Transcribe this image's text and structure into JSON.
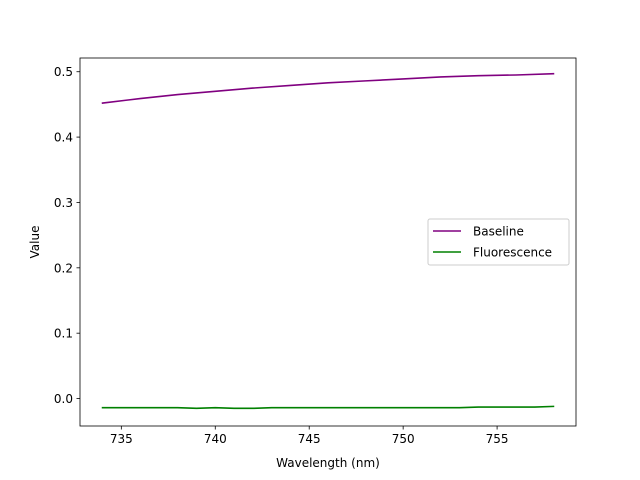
{
  "chart_data": {
    "type": "line",
    "title": "",
    "xlabel": "Wavelength (nm)",
    "ylabel": "Value",
    "xlim": [
      732.8,
      759.2
    ],
    "ylim": [
      -0.042,
      0.521
    ],
    "xticks": [
      735,
      740,
      745,
      750,
      755
    ],
    "yticks": [
      0.0,
      0.1,
      0.2,
      0.3,
      0.4,
      0.5
    ],
    "xtick_labels": [
      "735",
      "740",
      "745",
      "750",
      "755"
    ],
    "ytick_labels": [
      "0.0",
      "0.1",
      "0.2",
      "0.3",
      "0.4",
      "0.5"
    ],
    "grid": false,
    "legend": "center-right",
    "series": [
      {
        "name": "Baseline",
        "color": "#800080",
        "x": [
          734,
          736,
          738,
          740,
          742,
          744,
          746,
          748,
          750,
          752,
          754,
          756,
          758
        ],
        "y": [
          0.452,
          0.459,
          0.465,
          0.47,
          0.475,
          0.479,
          0.483,
          0.486,
          0.489,
          0.492,
          0.494,
          0.495,
          0.497
        ]
      },
      {
        "name": "Fluorescence",
        "color": "#008000",
        "x": [
          734,
          735,
          736,
          737,
          738,
          739,
          740,
          741,
          742,
          743,
          744,
          745,
          746,
          747,
          748,
          749,
          750,
          751,
          752,
          753,
          754,
          755,
          756,
          757,
          758
        ],
        "y": [
          -0.014,
          -0.014,
          -0.014,
          -0.014,
          -0.014,
          -0.015,
          -0.014,
          -0.015,
          -0.015,
          -0.014,
          -0.014,
          -0.014,
          -0.014,
          -0.014,
          -0.014,
          -0.014,
          -0.014,
          -0.014,
          -0.014,
          -0.014,
          -0.013,
          -0.013,
          -0.013,
          -0.013,
          -0.012
        ]
      }
    ]
  }
}
